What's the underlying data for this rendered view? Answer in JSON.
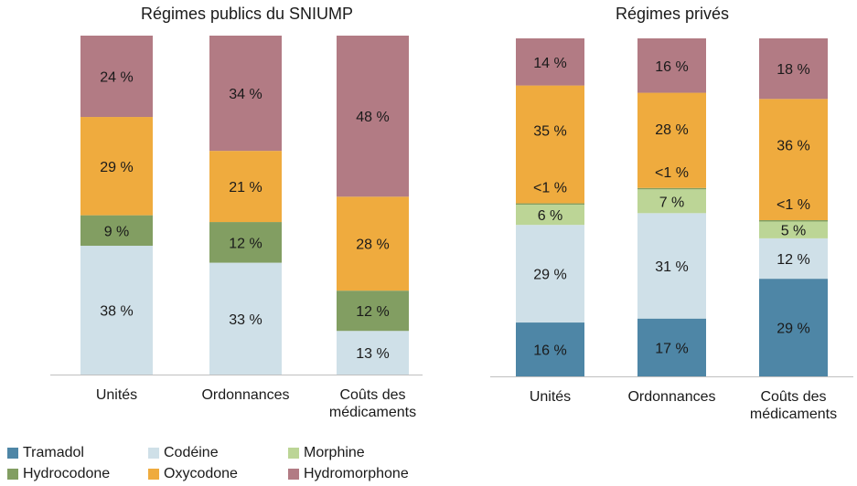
{
  "chart_data": [
    {
      "type": "bar",
      "stacked": true,
      "title": "Régimes publics du SNIUMP",
      "categories": [
        "Unités",
        "Ordonnances",
        "Coûts des médicaments"
      ],
      "series": [
        {
          "name": "Codéine",
          "key": "codeine",
          "values": [
            38,
            33,
            13
          ],
          "labels": [
            "38 %",
            "33 %",
            "13 %"
          ]
        },
        {
          "name": "Hydrocodone",
          "key": "hydrocodone",
          "values": [
            9,
            12,
            12
          ],
          "labels": [
            "9 %",
            "12 %",
            "12 %"
          ]
        },
        {
          "name": "Oxycodone",
          "key": "oxycodone",
          "values": [
            29,
            21,
            28
          ],
          "labels": [
            "29 %",
            "21 %",
            "28 %"
          ]
        },
        {
          "name": "Hydromorphone",
          "key": "hydromorphone",
          "values": [
            24,
            34,
            48
          ],
          "labels": [
            "24 %",
            "34 %",
            "48 %"
          ]
        }
      ]
    },
    {
      "type": "bar",
      "stacked": true,
      "title": "Régimes privés",
      "categories": [
        "Unités",
        "Ordonnances",
        "Coûts des médicaments"
      ],
      "series": [
        {
          "name": "Tramadol",
          "key": "tramadol",
          "values": [
            16,
            17,
            29
          ],
          "labels": [
            "16 %",
            "17 %",
            "29 %"
          ]
        },
        {
          "name": "Codéine",
          "key": "codeine",
          "values": [
            29,
            31,
            12
          ],
          "labels": [
            "29 %",
            "31 %",
            "12 %"
          ]
        },
        {
          "name": "Morphine",
          "key": "morphine",
          "values": [
            6,
            7,
            5
          ],
          "labels": [
            "6 %",
            "7 %",
            "5 %"
          ]
        },
        {
          "name": "Hydrocodone",
          "key": "hydrocodone",
          "values": [
            0.4,
            0.4,
            0.4
          ],
          "labels": [
            "<1 %",
            "<1 %",
            "<1 %"
          ]
        },
        {
          "name": "Oxycodone",
          "key": "oxycodone",
          "values": [
            35,
            28,
            36
          ],
          "labels": [
            "35 %",
            "28 %",
            "36 %"
          ]
        },
        {
          "name": "Hydromorphone",
          "key": "hydromorphone",
          "values": [
            14,
            16,
            18
          ],
          "labels": [
            "14 %",
            "16 %",
            "18 %"
          ]
        }
      ]
    }
  ],
  "colors": {
    "tramadol": "#4e86a6",
    "codeine": "#cfe0e8",
    "morphine": "#bcd596",
    "hydrocodone": "#829e62",
    "oxycodone": "#efab3e",
    "hydromorphone": "#b27b84"
  },
  "legend": [
    {
      "key": "tramadol",
      "label": "Tramadol"
    },
    {
      "key": "codeine",
      "label": "Codéine"
    },
    {
      "key": "morphine",
      "label": "Morphine"
    },
    {
      "key": "hydrocodone",
      "label": "Hydrocodone"
    },
    {
      "key": "oxycodone",
      "label": "Oxycodone"
    },
    {
      "key": "hydromorphone",
      "label": "Hydromorphone"
    }
  ],
  "legend_position": "bottom"
}
